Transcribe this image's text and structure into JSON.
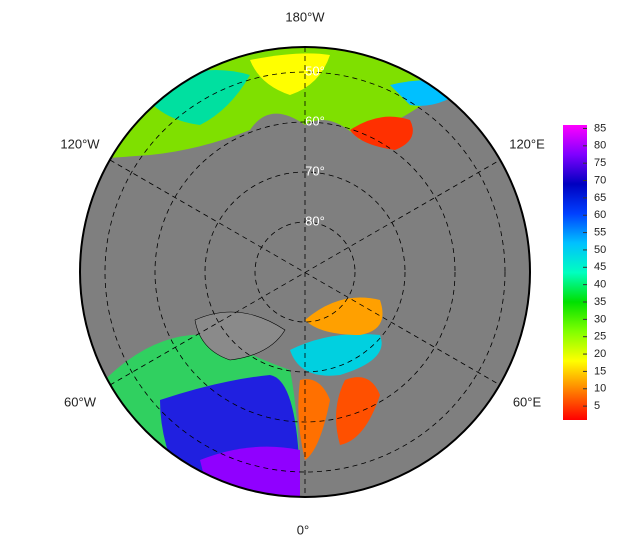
{
  "map": {
    "lon_labels": {
      "top": "180°W",
      "upper_left": "120°W",
      "upper_right": "120°E",
      "lower_left": "60°W",
      "lower_right": "60°E",
      "bottom": "0°"
    },
    "lat_labels": [
      "50°",
      "60°",
      "70°",
      "80°"
    ],
    "colorbar": {
      "lim": [
        1,
        86
      ],
      "ticks": [
        5,
        10,
        15,
        20,
        25,
        30,
        35,
        40,
        45,
        50,
        55,
        60,
        65,
        70,
        75,
        80,
        85
      ],
      "colors": [
        "#ff0000",
        "#ff8000",
        "#ffff00",
        "#80ff00",
        "#00e000",
        "#00ffc0",
        "#00c0ff",
        "#0040ff",
        "#0000c0",
        "#8000ff",
        "#ff00ff"
      ]
    }
  }
}
